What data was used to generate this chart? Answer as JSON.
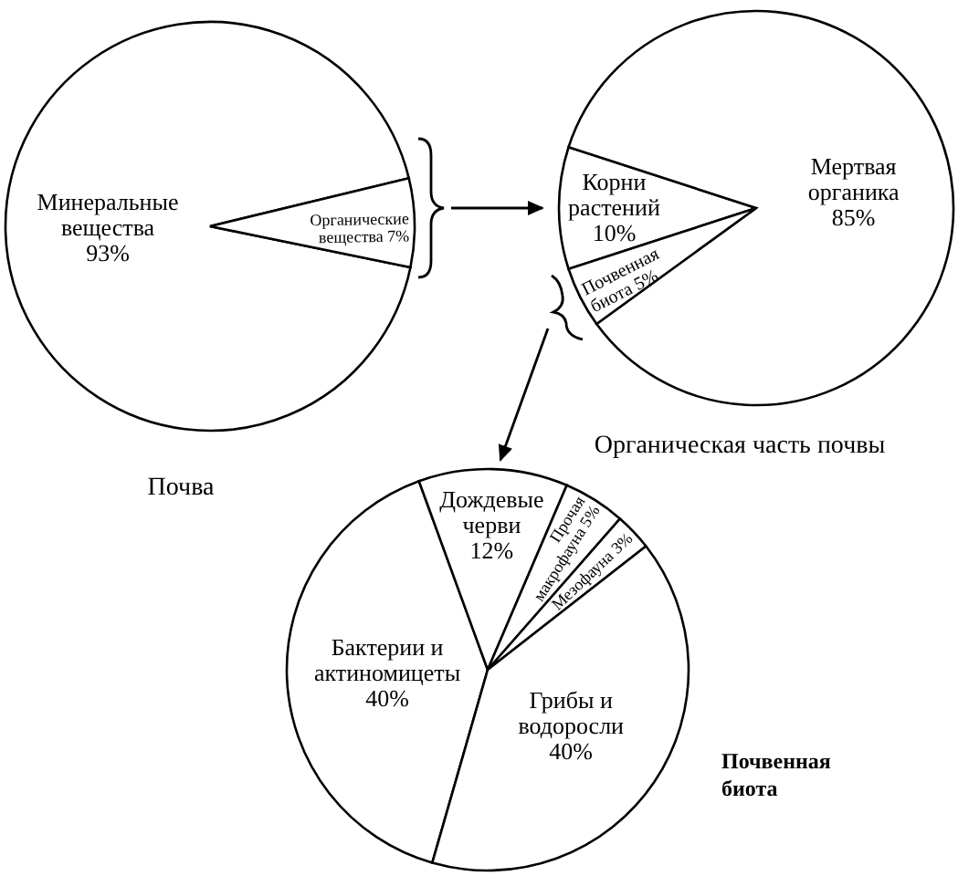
{
  "chart_data": [
    {
      "type": "pie",
      "title": "Почва",
      "categories": [
        "Минеральные вещества",
        "Органические вещества"
      ],
      "values": [
        93,
        7
      ],
      "value_labels": [
        "93%",
        "7%"
      ],
      "colors": [
        "#ffffff",
        "#ffffff"
      ]
    },
    {
      "type": "pie",
      "title": "Органическая часть почвы",
      "categories": [
        "Корни растений",
        "Мертвая органика",
        "Почвенная биота"
      ],
      "values": [
        10,
        85,
        5
      ],
      "value_labels": [
        "10%",
        "85%",
        "5%"
      ],
      "colors": [
        "#ffffff",
        "#ffffff",
        "#ffffff"
      ]
    },
    {
      "type": "pie",
      "title": "Почвенная биота",
      "categories": [
        "Бактерии и актиномицеты",
        "Дождевые черви",
        "Прочая макрофауна",
        "Мезофауна",
        "Грибы и водоросли"
      ],
      "values": [
        40,
        12,
        5,
        3,
        40
      ],
      "value_labels": [
        "40%",
        "12%",
        "5%",
        "3%",
        "40%"
      ],
      "colors": [
        "#ffffff",
        "#ffffff",
        "#ffffff",
        "#ffffff",
        "#ffffff"
      ]
    }
  ]
}
